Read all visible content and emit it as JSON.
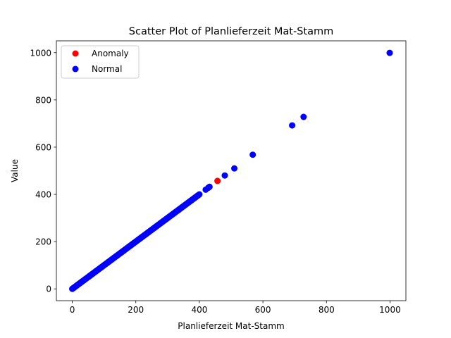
{
  "chart_data": {
    "type": "scatter",
    "title": "Scatter Plot of Planlieferzeit Mat-Stamm",
    "xlabel": "Planlieferzeit Mat-Stamm",
    "ylabel": "Value",
    "xlim": [
      -50,
      1050
    ],
    "ylim": [
      -50,
      1050
    ],
    "xticks": [
      0,
      200,
      400,
      600,
      800,
      1000
    ],
    "yticks": [
      0,
      200,
      400,
      600,
      800,
      1000
    ],
    "xtick_labels": [
      "0",
      "200",
      "400",
      "600",
      "800",
      "1000"
    ],
    "ytick_labels": [
      "0",
      "200",
      "400",
      "600",
      "800",
      "1000"
    ],
    "grid": false,
    "legend_position": "top-left",
    "series": [
      {
        "name": "Anomaly",
        "color": "#ff0000",
        "points": [
          [
            457,
            457
          ]
        ]
      },
      {
        "name": "Normal",
        "color": "#0000ff",
        "dense_range": [
          0,
          400
        ],
        "points": [
          [
            420,
            420
          ],
          [
            428,
            428
          ],
          [
            432,
            432
          ],
          [
            480,
            480
          ],
          [
            510,
            510
          ],
          [
            568,
            568
          ],
          [
            692,
            692
          ],
          [
            728,
            728
          ],
          [
            999,
            999
          ]
        ]
      }
    ],
    "legend": [
      {
        "label": "Anomaly",
        "color": "#ff0000"
      },
      {
        "label": "Normal",
        "color": "#0000ff"
      }
    ]
  }
}
